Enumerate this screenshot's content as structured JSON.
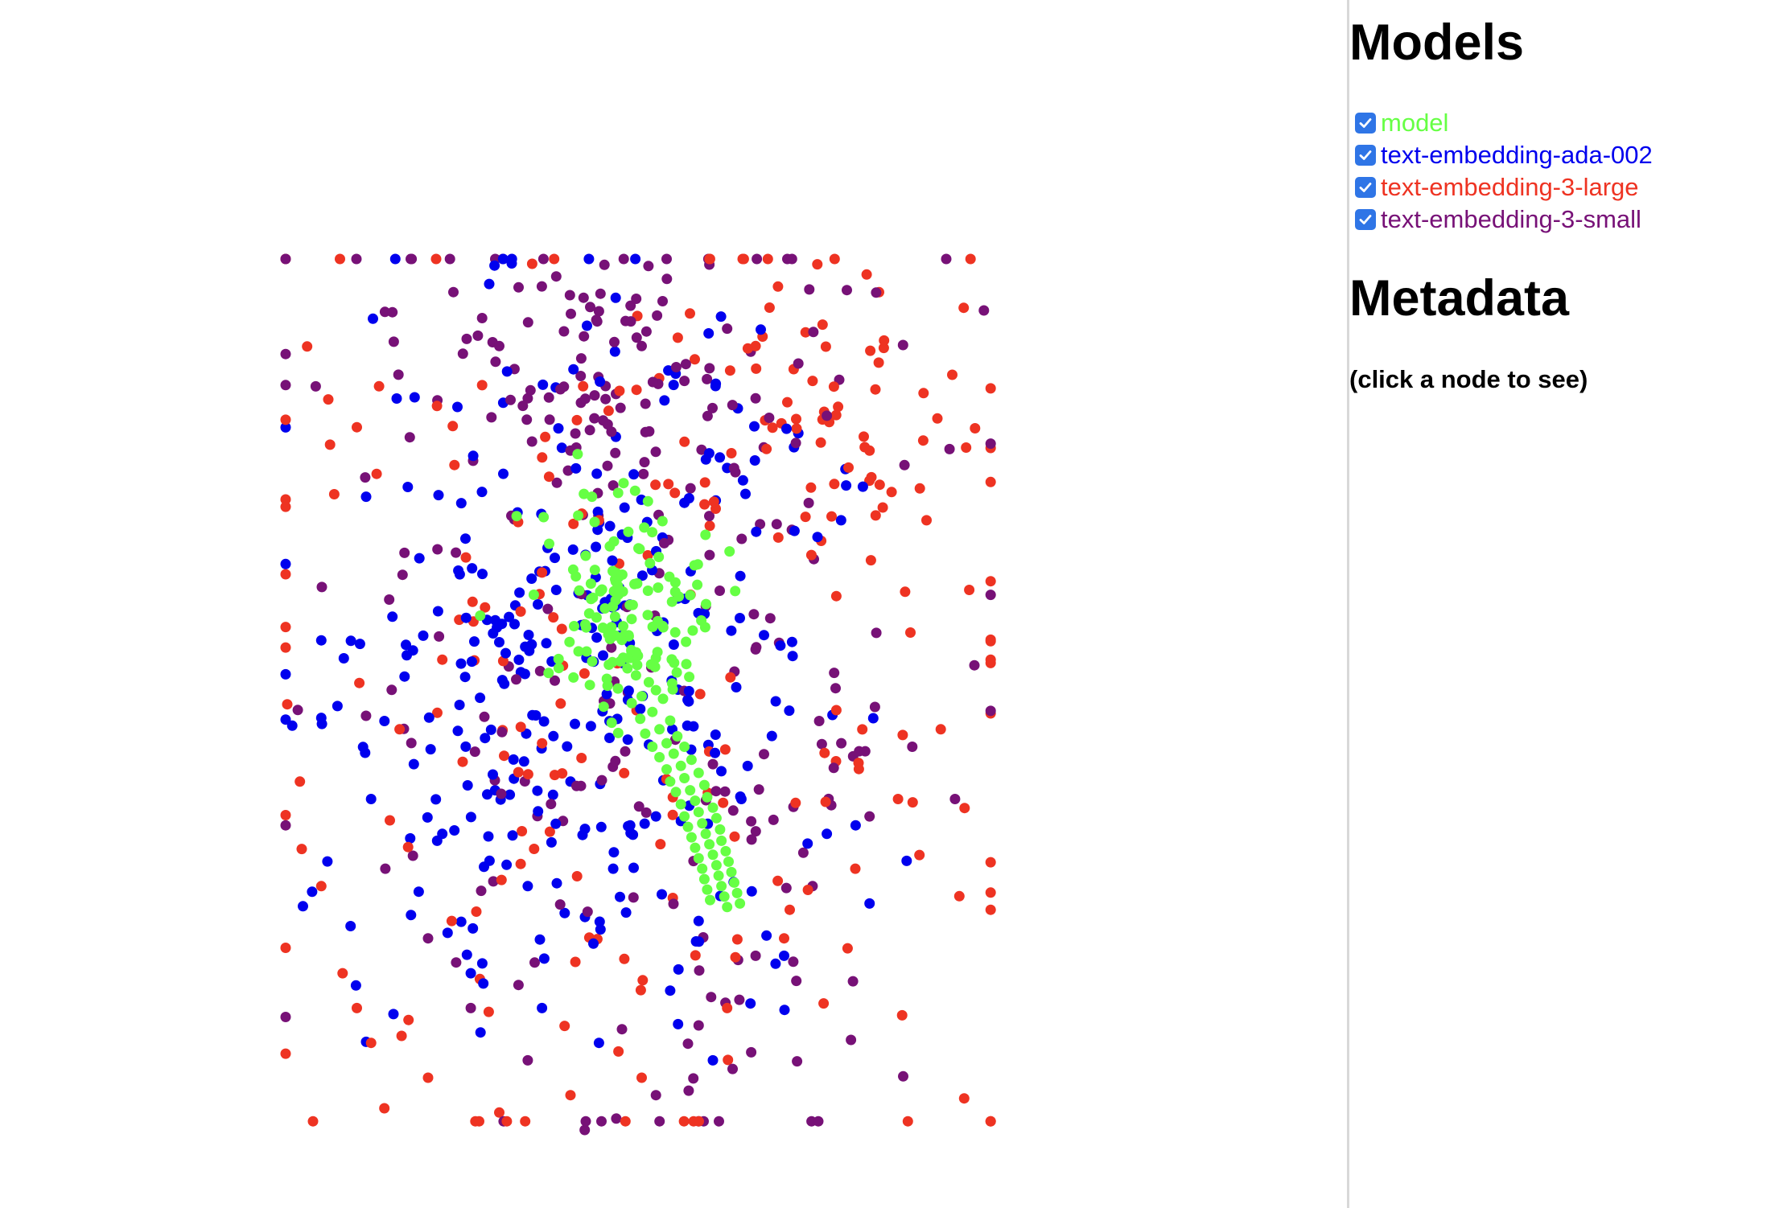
{
  "sidebar": {
    "models_title": "Models",
    "metadata_title": "Metadata",
    "metadata_hint": "(click a node to see)",
    "models": [
      {
        "label": "model",
        "color": "#66ff44",
        "checked": true
      },
      {
        "label": "text-embedding-ada-002",
        "color": "#0000ee",
        "checked": true
      },
      {
        "label": "text-embedding-3-large",
        "color": "#ee3322",
        "checked": true
      },
      {
        "label": "text-embedding-3-small",
        "color": "#771177",
        "checked": true
      }
    ]
  },
  "chart_data": {
    "type": "scatter",
    "title": "",
    "xlabel": "",
    "ylabel": "",
    "axes_visible": false,
    "grid": false,
    "xlim": [
      0,
      1
    ],
    "ylim": [
      0,
      1
    ],
    "series": [
      {
        "name": "model",
        "color": "#66ff44",
        "point_count": 190,
        "points": [
          [
            0.48,
            0.47
          ],
          [
            0.492,
            0.478
          ],
          [
            0.47,
            0.462
          ],
          [
            0.51,
            0.486
          ],
          [
            0.52,
            0.495
          ],
          [
            0.5,
            0.502
          ],
          [
            0.486,
            0.51
          ],
          [
            0.53,
            0.505
          ],
          [
            0.515,
            0.52
          ],
          [
            0.498,
            0.528
          ],
          [
            0.54,
            0.53
          ],
          [
            0.525,
            0.54
          ],
          [
            0.505,
            0.545
          ],
          [
            0.55,
            0.548
          ],
          [
            0.535,
            0.556
          ],
          [
            0.515,
            0.56
          ],
          [
            0.56,
            0.56
          ],
          [
            0.545,
            0.568
          ],
          [
            0.525,
            0.572
          ],
          [
            0.57,
            0.575
          ],
          [
            0.555,
            0.582
          ],
          [
            0.535,
            0.586
          ],
          [
            0.58,
            0.59
          ],
          [
            0.56,
            0.596
          ],
          [
            0.54,
            0.6
          ],
          [
            0.588,
            0.604
          ],
          [
            0.568,
            0.61
          ],
          [
            0.548,
            0.612
          ],
          [
            0.592,
            0.618
          ],
          [
            0.575,
            0.622
          ],
          [
            0.555,
            0.626
          ],
          [
            0.6,
            0.63
          ],
          [
            0.58,
            0.635
          ],
          [
            0.56,
            0.64
          ],
          [
            0.605,
            0.642
          ],
          [
            0.585,
            0.648
          ],
          [
            0.565,
            0.652
          ],
          [
            0.61,
            0.655
          ],
          [
            0.59,
            0.66
          ],
          [
            0.57,
            0.664
          ],
          [
            0.612,
            0.668
          ],
          [
            0.595,
            0.672
          ],
          [
            0.575,
            0.676
          ],
          [
            0.618,
            0.68
          ],
          [
            0.6,
            0.684
          ],
          [
            0.58,
            0.688
          ],
          [
            0.622,
            0.692
          ],
          [
            0.605,
            0.696
          ],
          [
            0.585,
            0.7
          ],
          [
            0.626,
            0.704
          ],
          [
            0.608,
            0.708
          ],
          [
            0.588,
            0.712
          ],
          [
            0.63,
            0.716
          ],
          [
            0.612,
            0.72
          ],
          [
            0.592,
            0.724
          ],
          [
            0.634,
            0.728
          ],
          [
            0.616,
            0.732
          ],
          [
            0.596,
            0.736
          ],
          [
            0.638,
            0.74
          ],
          [
            0.62,
            0.744
          ]
        ]
      },
      {
        "name": "text-embedding-ada-002",
        "color": "#0000ee",
        "point_count": 330,
        "points": [
          [
            0.12,
            0.62
          ],
          [
            0.18,
            0.58
          ],
          [
            0.22,
            0.66
          ],
          [
            0.28,
            0.55
          ],
          [
            0.34,
            0.72
          ],
          [
            0.4,
            0.6
          ],
          [
            0.46,
            0.7
          ],
          [
            0.52,
            0.64
          ],
          [
            0.58,
            0.76
          ],
          [
            0.64,
            0.62
          ],
          [
            0.7,
            0.8
          ],
          [
            0.76,
            0.66
          ],
          [
            0.82,
            0.74
          ],
          [
            0.3,
            0.44
          ],
          [
            0.38,
            0.38
          ],
          [
            0.48,
            0.32
          ],
          [
            0.56,
            0.28
          ],
          [
            0.62,
            0.24
          ],
          [
            0.72,
            0.2
          ],
          [
            0.78,
            0.3
          ],
          [
            0.26,
            0.82
          ],
          [
            0.36,
            0.86
          ],
          [
            0.44,
            0.9
          ],
          [
            0.54,
            0.84
          ],
          [
            0.6,
            0.92
          ]
        ]
      },
      {
        "name": "text-embedding-3-large",
        "color": "#ee3322",
        "point_count": 260,
        "points": [
          [
            0.02,
            0.6
          ],
          [
            0.05,
            0.72
          ],
          [
            0.08,
            0.82
          ],
          [
            0.12,
            0.9
          ],
          [
            0.16,
            0.54
          ],
          [
            0.22,
            0.46
          ],
          [
            0.28,
            0.4
          ],
          [
            0.36,
            0.36
          ],
          [
            0.44,
            0.3
          ],
          [
            0.66,
            0.1
          ],
          [
            0.74,
            0.14
          ],
          [
            0.82,
            0.22
          ],
          [
            0.9,
            0.3
          ],
          [
            0.96,
            0.38
          ],
          [
            0.99,
            0.46
          ],
          [
            0.92,
            0.54
          ],
          [
            0.86,
            0.62
          ],
          [
            0.8,
            0.7
          ],
          [
            0.7,
            0.78
          ],
          [
            0.62,
            0.86
          ],
          [
            0.5,
            0.94
          ],
          [
            0.4,
            0.96
          ],
          [
            0.3,
            0.98
          ],
          [
            0.2,
            0.94
          ],
          [
            0.1,
            0.86
          ]
        ]
      },
      {
        "name": "text-embedding-3-small",
        "color": "#771177",
        "point_count": 290,
        "points": [
          [
            0.38,
            0.02
          ],
          [
            0.44,
            0.06
          ],
          [
            0.5,
            0.1
          ],
          [
            0.56,
            0.14
          ],
          [
            0.62,
            0.08
          ],
          [
            0.66,
            0.16
          ],
          [
            0.72,
            0.12
          ],
          [
            0.76,
            0.18
          ],
          [
            0.3,
            0.1
          ],
          [
            0.34,
            0.16
          ],
          [
            0.4,
            0.22
          ],
          [
            0.46,
            0.26
          ],
          [
            0.14,
            0.7
          ],
          [
            0.2,
            0.78
          ],
          [
            0.26,
            0.86
          ],
          [
            0.34,
            0.92
          ],
          [
            0.42,
            1.0
          ],
          [
            0.52,
            0.96
          ],
          [
            0.58,
            0.88
          ],
          [
            0.66,
            0.8
          ],
          [
            0.74,
            0.72
          ],
          [
            0.82,
            0.64
          ],
          [
            0.88,
            0.56
          ],
          [
            0.94,
            0.62
          ],
          [
            0.6,
            0.58
          ]
        ]
      }
    ]
  }
}
